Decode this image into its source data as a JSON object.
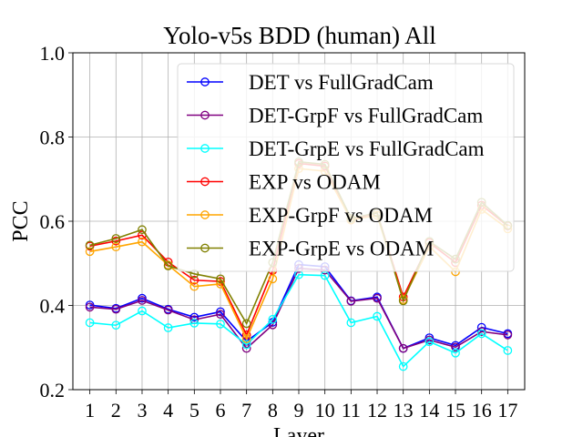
{
  "chart_data": {
    "type": "line",
    "title": "Yolo-v5s BDD (human) All",
    "xlabel": "Layer",
    "ylabel": "PCC",
    "ylim": [
      0.2,
      1.0
    ],
    "yticks": [
      "0.2",
      "0.4",
      "0.6",
      "0.8",
      "1.0"
    ],
    "x": [
      1,
      2,
      3,
      4,
      5,
      6,
      7,
      8,
      9,
      10,
      11,
      12,
      13,
      14,
      15,
      16,
      17
    ],
    "grid": true,
    "legend_position": "top-right",
    "series": [
      {
        "name": "DET vs FullGradCam",
        "color": "#0000ff",
        "values": [
          0.401,
          0.393,
          0.417,
          0.391,
          0.372,
          0.385,
          0.315,
          0.36,
          0.497,
          0.492,
          0.411,
          0.42,
          0.298,
          0.323,
          0.305,
          0.348,
          0.333
        ]
      },
      {
        "name": "DET-GrpF vs FullGradCam",
        "color": "#800080",
        "values": [
          0.396,
          0.391,
          0.412,
          0.389,
          0.366,
          0.379,
          0.298,
          0.354,
          0.488,
          0.484,
          0.41,
          0.417,
          0.298,
          0.318,
          0.301,
          0.338,
          0.33
        ]
      },
      {
        "name": "DET-GrpE vs FullGradCam",
        "color": "#00ffff",
        "values": [
          0.359,
          0.353,
          0.387,
          0.347,
          0.358,
          0.356,
          0.307,
          0.367,
          0.473,
          0.471,
          0.359,
          0.374,
          0.255,
          0.314,
          0.287,
          0.333,
          0.293
        ]
      },
      {
        "name": "EXP vs ODAM",
        "color": "#ff0000",
        "values": [
          0.541,
          0.553,
          0.567,
          0.503,
          0.46,
          0.457,
          0.33,
          0.483,
          0.737,
          0.731,
          0.603,
          0.62,
          0.42,
          0.549,
          0.502,
          0.638,
          0.589
        ]
      },
      {
        "name": "EXP-GrpF vs ODAM",
        "color": "#ffa500",
        "values": [
          0.528,
          0.539,
          0.551,
          0.496,
          0.445,
          0.451,
          0.321,
          0.463,
          0.725,
          0.719,
          0.603,
          0.614,
          0.414,
          0.54,
          0.48,
          0.628,
          0.582
        ]
      },
      {
        "name": "EXP-GrpE vs ODAM",
        "color": "#808000",
        "values": [
          0.543,
          0.559,
          0.58,
          0.494,
          0.475,
          0.463,
          0.357,
          0.502,
          0.741,
          0.735,
          0.607,
          0.62,
          0.411,
          0.552,
          0.51,
          0.645,
          0.59
        ]
      }
    ]
  }
}
